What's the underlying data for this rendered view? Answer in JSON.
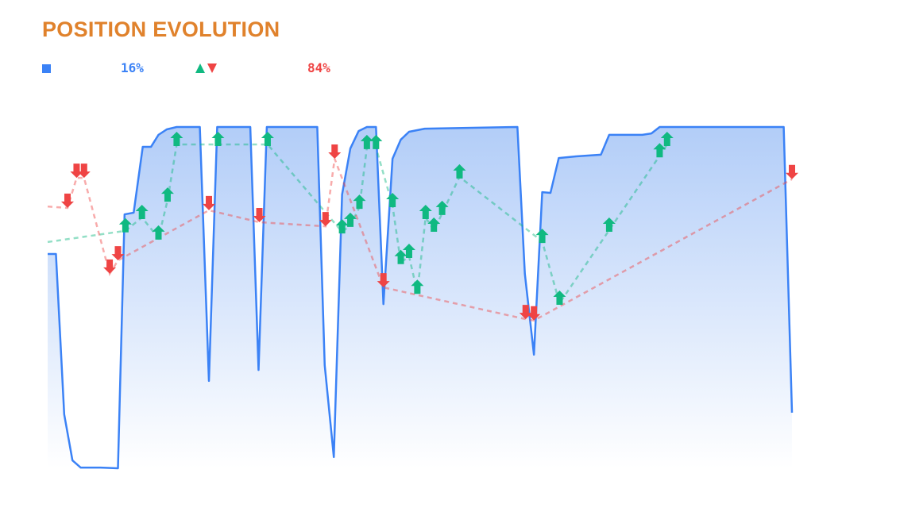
{
  "title": "POSITION EVOLUTION",
  "legend": {
    "position_pct": "16%",
    "trades_pct": "84%",
    "position_color": "#3b82f6",
    "buy_color": "#10b981",
    "sell_color": "#ef4444"
  },
  "chart_data": {
    "type": "area",
    "title": "POSITION EVOLUTION",
    "xlabel": "",
    "ylabel": "",
    "xlim": [
      0,
      90
    ],
    "ylim": [
      0,
      100
    ],
    "grid": false,
    "axes_visible": false,
    "series": [
      {
        "kind": "area",
        "color": "#3b82f6",
        "x": [
          0,
          1,
          2,
          3,
          4,
          6.4,
          8.5,
          9.3,
          10.4,
          11.5,
          12.5,
          13.4,
          14.4,
          15.6,
          18.4,
          19.5,
          20.5,
          24.5,
          25.5,
          26.5,
          32.6,
          33.5,
          34.6,
          35.6,
          36.6,
          37.6,
          38.6,
          39.7,
          40.6,
          41.7,
          42.7,
          43.7,
          45.6,
          56.8,
          57.7,
          58.8,
          59.8,
          60.8,
          61.8,
          63.9,
          66.9,
          67.9,
          71.9,
          73.0,
          74.0,
          89.0,
          90.0
        ],
        "y": [
          62.8,
          62.8,
          15.8,
          2.3,
          0.2,
          0.2,
          0,
          74.4,
          74.9,
          94.2,
          94.2,
          97.7,
          99.3,
          100,
          100,
          25.6,
          100,
          100,
          28.8,
          100,
          100,
          30.2,
          3.3,
          80.2,
          93.7,
          98.8,
          100,
          100,
          48.1,
          90.7,
          96.3,
          98.6,
          99.5,
          100,
          57.0,
          33.3,
          80.9,
          80.7,
          90.9,
          91.4,
          91.9,
          97.7,
          97.7,
          98.1,
          100,
          100,
          16.3
        ]
      },
      {
        "kind": "buy-markers",
        "color": "#10b981",
        "line_start": [
          0,
          66.3
        ],
        "x": [
          9.4,
          11.4,
          13.4,
          14.5,
          15.6,
          20.6,
          26.6,
          35.6,
          36.6,
          37.7,
          38.6,
          39.7,
          41.7,
          42.7,
          43.7,
          44.7,
          45.7,
          46.7,
          47.7,
          49.8,
          59.8,
          61.9,
          67.9,
          74.0,
          74.9
        ],
        "y": [
          73.3,
          77.2,
          71.2,
          82.3,
          98.6,
          98.6,
          98.6,
          73.0,
          74.9,
          80.2,
          97.7,
          97.7,
          80.7,
          64.0,
          65.8,
          55.3,
          77.2,
          73.5,
          78.4,
          89.1,
          70.2,
          52.1,
          73.5,
          95.3,
          98.6
        ]
      },
      {
        "kind": "sell-markers",
        "color": "#ef4444",
        "line_start": [
          0,
          76.7
        ],
        "x": [
          2.4,
          3.5,
          4.4,
          7.5,
          8.5,
          19.5,
          25.6,
          33.6,
          34.7,
          40.6,
          57.8,
          58.8,
          90.0
        ],
        "y": [
          76.3,
          85.1,
          85.1,
          57.0,
          60.9,
          75.6,
          72.1,
          70.9,
          90.7,
          53.0,
          43.7,
          43.3,
          84.7
        ]
      }
    ]
  }
}
